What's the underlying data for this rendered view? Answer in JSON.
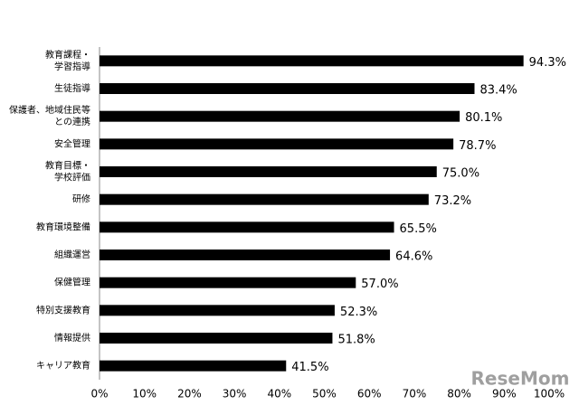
{
  "chart_data": {
    "type": "bar",
    "orientation": "horizontal",
    "categories": [
      [
        "教育課程・",
        "学習指導"
      ],
      [
        "生徒指導"
      ],
      [
        "保護者、地域住民等",
        "との連携"
      ],
      [
        "安全管理"
      ],
      [
        "教育目標・",
        "学校評価"
      ],
      [
        "研修"
      ],
      [
        "教育環境整備"
      ],
      [
        "組織運営"
      ],
      [
        "保健管理"
      ],
      [
        "特別支援教育"
      ],
      [
        "情報提供"
      ],
      [
        "キャリア教育"
      ]
    ],
    "values": [
      94.3,
      83.4,
      80.1,
      78.7,
      75.0,
      73.2,
      65.5,
      64.6,
      57.0,
      52.3,
      51.8,
      41.5
    ],
    "value_labels": [
      "94.3%",
      "83.4%",
      "80.1%",
      "78.7%",
      "75.0%",
      "73.2%",
      "65.5%",
      "64.6%",
      "57.0%",
      "52.3%",
      "51.8%",
      "41.5%"
    ],
    "color": "#000000",
    "xlim": [
      0,
      100
    ],
    "xticks": [
      {
        "value": 0,
        "label": "0%"
      },
      {
        "value": 10,
        "label": "10%"
      },
      {
        "value": 20,
        "label": "20%"
      },
      {
        "value": 30,
        "label": "30%"
      },
      {
        "value": 40,
        "label": "40%"
      },
      {
        "value": 50,
        "label": "50%"
      },
      {
        "value": 60,
        "label": "60%"
      },
      {
        "value": 70,
        "label": "70%"
      },
      {
        "value": 80,
        "label": "80%"
      },
      {
        "value": 90,
        "label": "90%"
      },
      {
        "value": 100,
        "label": "100%"
      }
    ],
    "grid": false,
    "watermark": "ReseMom"
  }
}
